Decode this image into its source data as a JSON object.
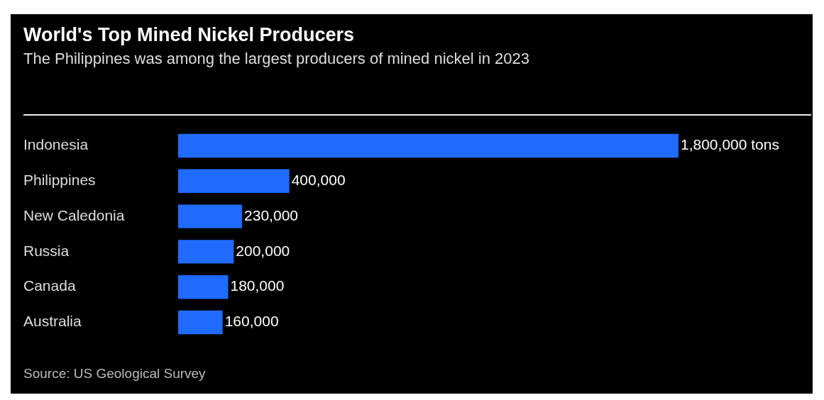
{
  "chart_data": {
    "type": "bar",
    "orientation": "horizontal",
    "title": "World's Top Mined Nickel Producers",
    "subtitle": "The Philippines was among the largest producers of mined nickel in 2023",
    "categories": [
      "Indonesia",
      "Philippines",
      "New Caledonia",
      "Russia",
      "Canada",
      "Australia"
    ],
    "values": [
      1800000,
      400000,
      230000,
      200000,
      180000,
      160000
    ],
    "value_labels": [
      "1,800,000 tons",
      "400,000",
      "230,000",
      "200,000",
      "180,000",
      "160,000"
    ],
    "color": "#1f6bff",
    "legend": false,
    "annotations": [
      "Source: US Geological Survey"
    ]
  }
}
